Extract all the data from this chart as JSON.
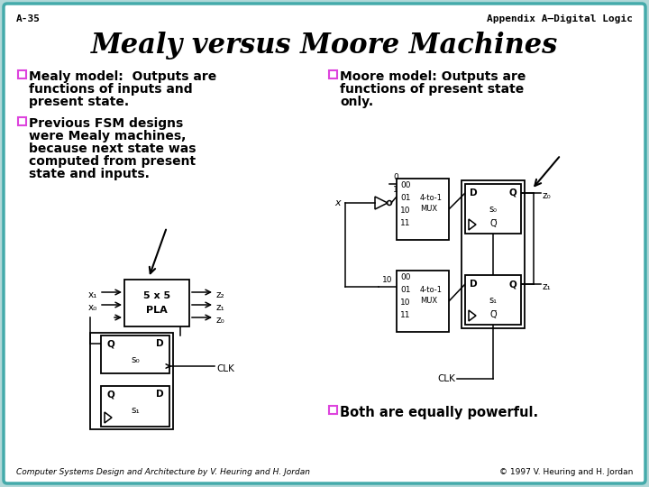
{
  "bg_outer": "#b0d8d8",
  "bg_slide": "#ffffff",
  "border_color": "#44aaaa",
  "title": "Mealy versus Moore Machines",
  "title_fontsize": 22,
  "title_color": "black",
  "header_left": "A-35",
  "header_right": "Appendix A—Digital Logic",
  "footer_left": "Computer Systems Design and Architecture by V. Heuring and H. Jordan",
  "footer_right": "© 1997 V. Heuring and H. Jordan",
  "bullet_color": "#dd44dd",
  "bullet1_line1": "Mealy model:  Outputs are",
  "bullet1_line2": "functions of inputs and",
  "bullet1_line3": "present state.",
  "bullet2_line1": "Previous FSM designs",
  "bullet2_line2": "were Mealy machines,",
  "bullet2_line3": "because next state was",
  "bullet2_line4": "computed from present",
  "bullet2_line5": "state and inputs.",
  "bullet3_line1": "Moore model: Outputs are",
  "bullet3_line2": "functions of present state",
  "bullet3_line3": "only.",
  "bullet4": "Both are equally powerful."
}
